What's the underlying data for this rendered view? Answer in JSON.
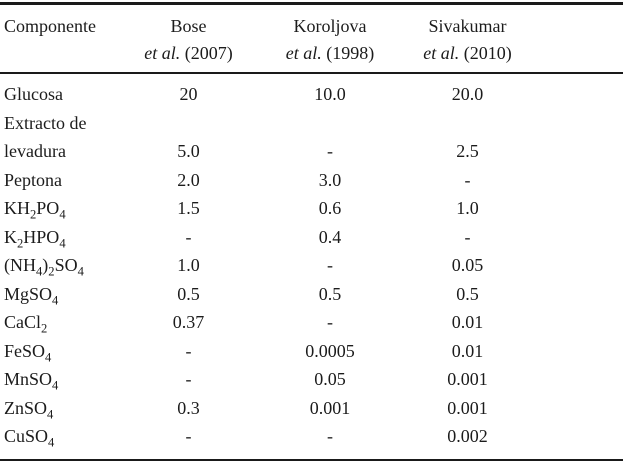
{
  "colors": {
    "background": "#ffffff",
    "text": "#1c1c1c",
    "rule": "#1a1a1a"
  },
  "table": {
    "columns": [
      {
        "label": "Componente"
      },
      {
        "name": "Bose",
        "etal": "et al.",
        "year": "(2007)"
      },
      {
        "name": "Koroljova",
        "etal": "et al.",
        "year": "(1998)"
      },
      {
        "name": "Sivakumar",
        "etal": "et al.",
        "year": "(2010)"
      }
    ],
    "rows": [
      {
        "component": "Glucosa",
        "values": [
          "20",
          "10.0",
          "20.0"
        ]
      },
      {
        "component": "Extracto de levadura",
        "values": [
          "5.0",
          "-",
          "2.5"
        ]
      },
      {
        "component": "Peptona",
        "values": [
          "2.0",
          "3.0",
          "-"
        ]
      },
      {
        "component": "KH_2PO_4",
        "values": [
          "1.5",
          "0.6",
          "1.0"
        ]
      },
      {
        "component": "K_2HPO_4",
        "values": [
          "-",
          "0.4",
          "-"
        ]
      },
      {
        "component": "(NH_4)_2SO_4",
        "values": [
          "1.0",
          "-",
          "0.05"
        ]
      },
      {
        "component": "MgSO_4",
        "values": [
          "0.5",
          "0.5",
          "0.5"
        ]
      },
      {
        "component": "CaCl_2",
        "values": [
          "0.37",
          "-",
          "0.01"
        ]
      },
      {
        "component": "FeSO_4",
        "values": [
          "-",
          "0.0005",
          "0.01"
        ]
      },
      {
        "component": "MnSO_4",
        "values": [
          "-",
          "0.05",
          "0.001"
        ]
      },
      {
        "component": "ZnSO_4",
        "values": [
          "0.3",
          "0.001",
          "0.001"
        ]
      },
      {
        "component": "CuSO_4",
        "values": [
          "-",
          "-",
          "0.002"
        ]
      }
    ]
  }
}
